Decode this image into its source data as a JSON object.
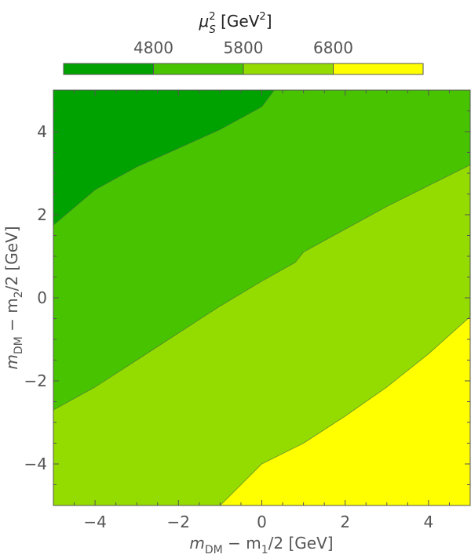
{
  "chart_data": {
    "type": "contour",
    "xlim": [
      -5,
      5
    ],
    "ylim": [
      -5,
      5
    ],
    "x_ticks": [
      -4,
      -2,
      0,
      2,
      4
    ],
    "y_ticks": [
      -4,
      -2,
      0,
      2,
      4
    ],
    "x_tick_labels": [
      "−4",
      "−2",
      "0",
      "2",
      "4"
    ],
    "y_tick_labels": [
      "−4",
      "−2",
      "0",
      "2",
      "4"
    ],
    "xlabel": {
      "m": "m",
      "sub1": "DM",
      "mid": " − m",
      "sub2": "1",
      "tail": "/2 [GeV]"
    },
    "ylabel": {
      "m": "m",
      "sub1": "DM",
      "mid": " − m",
      "sub2": "2",
      "tail": "/2 [GeV]"
    },
    "colorbar": {
      "title": {
        "mu": "μ",
        "sup": "2",
        "sub": "S",
        "unit_a": " [GeV",
        "unit_sup": "2",
        "unit_b": "]"
      },
      "tick_values": [
        4800,
        5800,
        6800
      ],
      "tick_labels": [
        "4800",
        "5800",
        "6800"
      ],
      "range": [
        3800,
        7800
      ],
      "colors": [
        "#00a200",
        "#48c300",
        "#94dc00",
        "#ffff00"
      ]
    },
    "levels": [
      {
        "range": [
          3800,
          4800
        ],
        "color": "#00a200"
      },
      {
        "range": [
          4800,
          5800
        ],
        "color": "#48c300"
      },
      {
        "range": [
          5800,
          6800
        ],
        "color": "#94dc00"
      },
      {
        "range": [
          6800,
          7800
        ],
        "color": "#ffff00"
      }
    ],
    "contours": [
      {
        "level": 4800,
        "points": [
          [
            -5,
            1.75
          ],
          [
            -4,
            2.6
          ],
          [
            -3,
            3.15
          ],
          [
            -2,
            3.6
          ],
          [
            -1,
            4.05
          ],
          [
            0,
            4.6
          ],
          [
            0.3,
            5
          ]
        ]
      },
      {
        "level": 5800,
        "points": [
          [
            -5,
            -2.7
          ],
          [
            -4,
            -2.15
          ],
          [
            -3,
            -1.5
          ],
          [
            -2,
            -0.85
          ],
          [
            -1,
            -0.2
          ],
          [
            0,
            0.4
          ],
          [
            0.8,
            0.85
          ],
          [
            1,
            1.1
          ],
          [
            2,
            1.65
          ],
          [
            3,
            2.2
          ],
          [
            4,
            2.7
          ],
          [
            5,
            3.2
          ]
        ]
      },
      {
        "level": 6800,
        "points": [
          [
            -1,
            -5
          ],
          [
            -0.5,
            -4.5
          ],
          [
            0,
            -4
          ],
          [
            1,
            -3.5
          ],
          [
            2,
            -2.85
          ],
          [
            3,
            -2.15
          ],
          [
            4,
            -1.35
          ],
          [
            5,
            -0.45
          ]
        ]
      }
    ]
  }
}
